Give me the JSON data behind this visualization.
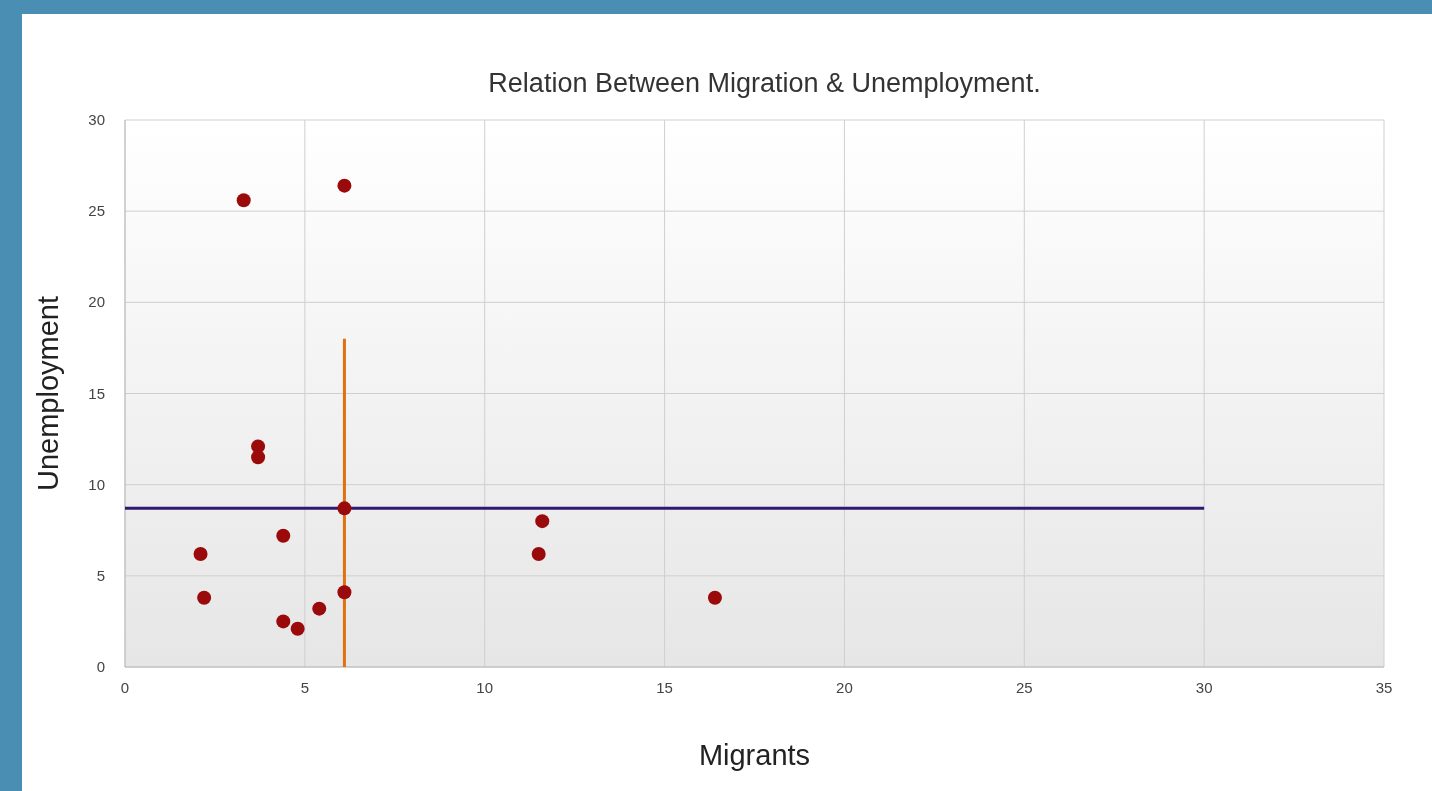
{
  "chart_data": {
    "type": "scatter",
    "title": "Relation Between Migration & Unemployment.",
    "xlabel": "Migrants",
    "ylabel": "Unemployment",
    "xlim": [
      0,
      35
    ],
    "xticks": [
      0,
      5,
      10,
      15,
      20,
      25,
      30,
      35
    ],
    "ylim": [
      0,
      30
    ],
    "yticks": [
      0,
      5,
      10,
      15,
      20,
      25,
      30
    ],
    "grid": true,
    "series": [
      {
        "marker": "circle",
        "color": "#9b0a0a",
        "x": [
          3.3,
          6.1,
          3.7,
          3.7,
          4.4,
          2.1,
          2.2,
          4.4,
          4.8,
          5.4,
          6.1,
          6.1,
          11.6,
          11.5,
          16.4
        ],
        "values": [
          25.6,
          26.4,
          12.1,
          11.5,
          7.2,
          6.2,
          3.8,
          2.5,
          2.1,
          3.2,
          4.1,
          8.7,
          8.0,
          6.2,
          3.8
        ]
      },
      {
        "type": "line",
        "color": "#2e1a6e",
        "x": [
          0,
          30
        ],
        "values": [
          8.7,
          8.7
        ]
      },
      {
        "type": "line",
        "color": "#e07010",
        "x": [
          6.1,
          6.1
        ],
        "values": [
          0,
          18
        ]
      }
    ]
  }
}
